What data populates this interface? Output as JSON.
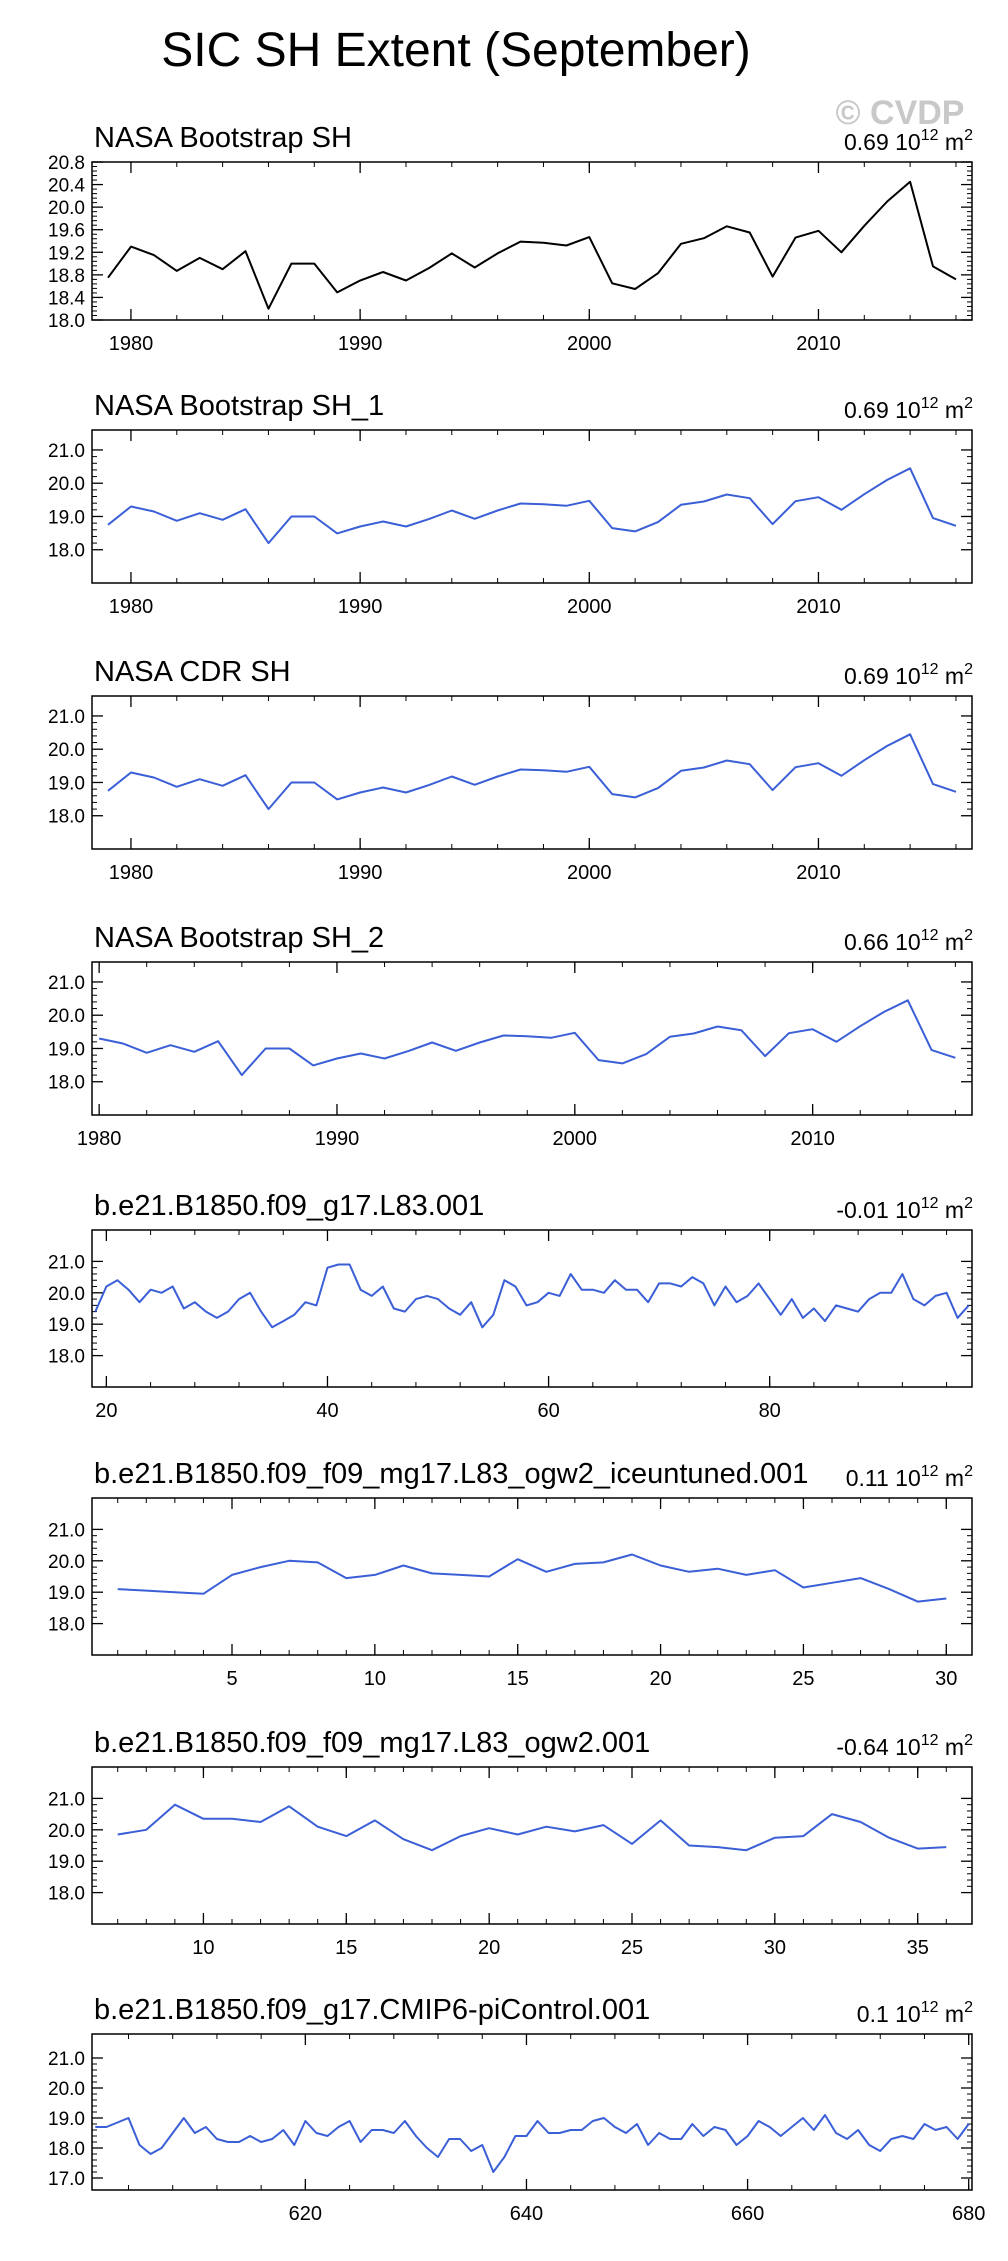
{
  "page": {
    "title": "SIC SH Extent (September)",
    "watermark": "© CVDP"
  },
  "colors": {
    "black": "#000000",
    "blue": "#3b5fd6",
    "watermark": "#c8c8c8"
  },
  "chart_data": [
    {
      "type": "line",
      "title": "NASA Bootstrap SH",
      "trend": "0.69",
      "trend_unit": "10",
      "trend_exp": "12",
      "trend_suffix": " m",
      "trend_sup2": "2",
      "color": "black",
      "xlim": [
        1978.3,
        2016.7
      ],
      "ylim": [
        18.0,
        20.8
      ],
      "xticks": [
        1980,
        1990,
        2000,
        2010
      ],
      "yticks": [
        18.0,
        18.4,
        18.8,
        19.2,
        19.6,
        20.0,
        20.4,
        20.8
      ],
      "x": [
        1979,
        1980,
        1981,
        1982,
        1983,
        1984,
        1985,
        1986,
        1987,
        1988,
        1989,
        1990,
        1991,
        1992,
        1993,
        1994,
        1995,
        1996,
        1997,
        1998,
        1999,
        2000,
        2001,
        2002,
        2003,
        2004,
        2005,
        2006,
        2007,
        2008,
        2009,
        2010,
        2011,
        2012,
        2013,
        2014,
        2015,
        2016
      ],
      "values": [
        18.75,
        19.3,
        19.15,
        18.87,
        19.1,
        18.9,
        19.22,
        18.2,
        19.0,
        19.0,
        18.49,
        18.7,
        18.85,
        18.7,
        18.92,
        19.18,
        18.93,
        19.18,
        19.39,
        19.37,
        19.32,
        19.47,
        18.65,
        18.55,
        18.83,
        19.35,
        19.45,
        19.66,
        19.55,
        18.77,
        19.46,
        19.58,
        19.2,
        19.67,
        20.1,
        20.45,
        18.95,
        18.72
      ]
    },
    {
      "type": "line",
      "title": "NASA Bootstrap SH_1",
      "trend": "0.69",
      "trend_unit": "10",
      "trend_exp": "12",
      "trend_suffix": " m",
      "trend_sup2": "2",
      "color": "blue",
      "xlim": [
        1978.3,
        2016.7
      ],
      "ylim": [
        17.0,
        21.6
      ],
      "xticks": [
        1980,
        1990,
        2000,
        2010
      ],
      "yticks": [
        18.0,
        19.0,
        20.0,
        21.0
      ],
      "x": [
        1979,
        1980,
        1981,
        1982,
        1983,
        1984,
        1985,
        1986,
        1987,
        1988,
        1989,
        1990,
        1991,
        1992,
        1993,
        1994,
        1995,
        1996,
        1997,
        1998,
        1999,
        2000,
        2001,
        2002,
        2003,
        2004,
        2005,
        2006,
        2007,
        2008,
        2009,
        2010,
        2011,
        2012,
        2013,
        2014,
        2015,
        2016
      ],
      "values": [
        18.75,
        19.3,
        19.15,
        18.87,
        19.1,
        18.9,
        19.22,
        18.2,
        19.0,
        19.0,
        18.49,
        18.7,
        18.85,
        18.7,
        18.92,
        19.18,
        18.93,
        19.18,
        19.39,
        19.37,
        19.32,
        19.47,
        18.65,
        18.55,
        18.83,
        19.35,
        19.45,
        19.66,
        19.55,
        18.77,
        19.46,
        19.58,
        19.2,
        19.67,
        20.1,
        20.45,
        18.95,
        18.72
      ]
    },
    {
      "type": "line",
      "title": "NASA CDR SH",
      "trend": "0.69",
      "trend_unit": "10",
      "trend_exp": "12",
      "trend_suffix": " m",
      "trend_sup2": "2",
      "color": "blue",
      "xlim": [
        1978.3,
        2016.7
      ],
      "ylim": [
        17.0,
        21.6
      ],
      "xticks": [
        1980,
        1990,
        2000,
        2010
      ],
      "yticks": [
        18.0,
        19.0,
        20.0,
        21.0
      ],
      "x": [
        1979,
        1980,
        1981,
        1982,
        1983,
        1984,
        1985,
        1986,
        1987,
        1988,
        1989,
        1990,
        1991,
        1992,
        1993,
        1994,
        1995,
        1996,
        1997,
        1998,
        1999,
        2000,
        2001,
        2002,
        2003,
        2004,
        2005,
        2006,
        2007,
        2008,
        2009,
        2010,
        2011,
        2012,
        2013,
        2014,
        2015,
        2016
      ],
      "values": [
        18.75,
        19.3,
        19.15,
        18.87,
        19.1,
        18.9,
        19.22,
        18.2,
        19.0,
        19.0,
        18.49,
        18.7,
        18.85,
        18.7,
        18.92,
        19.18,
        18.93,
        19.18,
        19.39,
        19.37,
        19.32,
        19.47,
        18.65,
        18.55,
        18.83,
        19.35,
        19.45,
        19.66,
        19.55,
        18.77,
        19.46,
        19.58,
        19.2,
        19.67,
        20.1,
        20.45,
        18.95,
        18.72
      ]
    },
    {
      "type": "line",
      "title": "NASA Bootstrap SH_2",
      "trend": "0.66",
      "trend_unit": "10",
      "trend_exp": "12",
      "trend_suffix": " m",
      "trend_sup2": "2",
      "color": "blue",
      "xlim": [
        1979.7,
        2016.7
      ],
      "ylim": [
        17.0,
        21.6
      ],
      "xticks": [
        1980,
        1990,
        2000,
        2010
      ],
      "yticks": [
        18.0,
        19.0,
        20.0,
        21.0
      ],
      "x": [
        1980,
        1981,
        1982,
        1983,
        1984,
        1985,
        1986,
        1987,
        1988,
        1989,
        1990,
        1991,
        1992,
        1993,
        1994,
        1995,
        1996,
        1997,
        1998,
        1999,
        2000,
        2001,
        2002,
        2003,
        2004,
        2005,
        2006,
        2007,
        2008,
        2009,
        2010,
        2011,
        2012,
        2013,
        2014,
        2015,
        2016
      ],
      "values": [
        19.3,
        19.15,
        18.87,
        19.1,
        18.9,
        19.22,
        18.2,
        19.0,
        19.0,
        18.49,
        18.7,
        18.85,
        18.7,
        18.92,
        19.18,
        18.93,
        19.18,
        19.39,
        19.37,
        19.32,
        19.47,
        18.65,
        18.55,
        18.83,
        19.35,
        19.45,
        19.66,
        19.55,
        18.77,
        19.46,
        19.58,
        19.2,
        19.67,
        20.1,
        20.45,
        18.95,
        18.72
      ]
    },
    {
      "type": "line",
      "title": "b.e21.B1850.f09_g17.L83.001",
      "trend": "-0.01",
      "trend_unit": "10",
      "trend_exp": "12",
      "trend_suffix": " m",
      "trend_sup2": "2",
      "color": "blue",
      "xlim": [
        18.7,
        98.3
      ],
      "ylim": [
        17.0,
        22.0
      ],
      "xticks": [
        20,
        40,
        60,
        80
      ],
      "yticks": [
        18.0,
        19.0,
        20.0,
        21.0
      ],
      "x": [
        19,
        20,
        21,
        22,
        23,
        24,
        25,
        26,
        27,
        28,
        29,
        30,
        31,
        32,
        33,
        34,
        35,
        36,
        37,
        38,
        39,
        40,
        41,
        42,
        43,
        44,
        45,
        46,
        47,
        48,
        49,
        50,
        51,
        52,
        53,
        54,
        55,
        56,
        57,
        58,
        59,
        60,
        61,
        62,
        63,
        64,
        65,
        66,
        67,
        68,
        69,
        70,
        71,
        72,
        73,
        74,
        75,
        76,
        77,
        78,
        79,
        80,
        81,
        82,
        83,
        84,
        85,
        86,
        87,
        88,
        89,
        90,
        91,
        92,
        93,
        94,
        95,
        96,
        97,
        98
      ],
      "values": [
        19.4,
        20.2,
        20.4,
        20.1,
        19.7,
        20.1,
        20.0,
        20.2,
        19.5,
        19.7,
        19.4,
        19.2,
        19.4,
        19.8,
        20.0,
        19.4,
        18.9,
        19.1,
        19.3,
        19.7,
        19.6,
        20.8,
        20.9,
        20.9,
        20.1,
        19.9,
        20.2,
        19.5,
        19.4,
        19.8,
        19.9,
        19.8,
        19.5,
        19.3,
        19.7,
        18.9,
        19.3,
        20.4,
        20.2,
        19.6,
        19.7,
        20.0,
        19.9,
        20.6,
        20.1,
        20.1,
        20.0,
        20.4,
        20.1,
        20.1,
        19.7,
        20.3,
        20.3,
        20.2,
        20.5,
        20.3,
        19.6,
        20.2,
        19.7,
        19.9,
        20.3,
        19.8,
        19.3,
        19.8,
        19.2,
        19.5,
        19.1,
        19.6,
        19.5,
        19.4,
        19.8,
        20.0,
        20.0,
        20.6,
        19.8,
        19.6,
        19.9,
        20.0,
        19.2,
        19.6
      ]
    },
    {
      "type": "line",
      "title": "b.e21.B1850.f09_f09_mg17.L83_ogw2_iceuntuned.001",
      "trend": "0.11",
      "trend_unit": "10",
      "trend_exp": "12",
      "trend_suffix": " m",
      "trend_sup2": "2",
      "color": "blue",
      "xlim": [
        0.1,
        30.9
      ],
      "ylim": [
        17.0,
        22.0
      ],
      "xticks": [
        5,
        10,
        15,
        20,
        25,
        30
      ],
      "yticks": [
        18.0,
        19.0,
        20.0,
        21.0
      ],
      "x": [
        1,
        2,
        3,
        4,
        5,
        6,
        7,
        8,
        9,
        10,
        11,
        12,
        13,
        14,
        15,
        16,
        17,
        18,
        19,
        20,
        21,
        22,
        23,
        24,
        25,
        26,
        27,
        28,
        29,
        30
      ],
      "values": [
        19.1,
        19.05,
        19.0,
        18.95,
        19.55,
        19.8,
        20.0,
        19.95,
        19.45,
        19.55,
        19.85,
        19.6,
        19.55,
        19.5,
        20.05,
        19.65,
        19.9,
        19.95,
        20.2,
        19.85,
        19.65,
        19.75,
        19.55,
        19.7,
        19.15,
        19.3,
        19.45,
        19.1,
        18.7,
        18.8
      ]
    },
    {
      "type": "line",
      "title": "b.e21.B1850.f09_f09_mg17.L83_ogw2.001",
      "trend": "-0.64",
      "trend_unit": "10",
      "trend_exp": "12",
      "trend_suffix": " m",
      "trend_sup2": "2",
      "color": "blue",
      "xlim": [
        6.1,
        36.9
      ],
      "ylim": [
        17.0,
        22.0
      ],
      "xticks": [
        10,
        15,
        20,
        25,
        30,
        35
      ],
      "yticks": [
        18.0,
        19.0,
        20.0,
        21.0
      ],
      "x": [
        7,
        8,
        9,
        10,
        11,
        12,
        13,
        14,
        15,
        16,
        17,
        18,
        19,
        20,
        21,
        22,
        23,
        24,
        25,
        26,
        27,
        28,
        29,
        30,
        31,
        32,
        33,
        34,
        35,
        36
      ],
      "values": [
        19.85,
        20.0,
        20.8,
        20.35,
        20.35,
        20.25,
        20.75,
        20.1,
        19.8,
        20.3,
        19.7,
        19.35,
        19.8,
        20.05,
        19.85,
        20.1,
        19.95,
        20.15,
        19.55,
        20.3,
        19.5,
        19.45,
        19.35,
        19.75,
        19.8,
        20.5,
        20.25,
        19.75,
        19.4,
        19.45
      ]
    },
    {
      "type": "line",
      "title": "b.e21.B1850.f09_g17.CMIP6-piControl.001",
      "trend": "0.1",
      "trend_unit": "10",
      "trend_exp": "12",
      "trend_suffix": " m",
      "trend_sup2": "2",
      "color": "blue",
      "xlim": [
        600.7,
        680.3
      ],
      "ylim": [
        16.6,
        21.8
      ],
      "xticks": [
        620,
        640,
        660,
        680
      ],
      "yticks": [
        17.0,
        18.0,
        19.0,
        20.0,
        21.0
      ],
      "x": [
        601,
        602,
        603,
        604,
        605,
        606,
        607,
        608,
        609,
        610,
        611,
        612,
        613,
        614,
        615,
        616,
        617,
        618,
        619,
        620,
        621,
        622,
        623,
        624,
        625,
        626,
        627,
        628,
        629,
        630,
        631,
        632,
        633,
        634,
        635,
        636,
        637,
        638,
        639,
        640,
        641,
        642,
        643,
        644,
        645,
        646,
        647,
        648,
        649,
        650,
        651,
        652,
        653,
        654,
        655,
        656,
        657,
        658,
        659,
        660,
        661,
        662,
        663,
        664,
        665,
        666,
        667,
        668,
        669,
        670,
        671,
        672,
        673,
        674,
        675,
        676,
        677,
        678,
        679,
        680
      ],
      "values": [
        18.7,
        18.7,
        18.85,
        19.0,
        18.1,
        17.8,
        18.0,
        18.5,
        19.0,
        18.5,
        18.7,
        18.3,
        18.2,
        18.2,
        18.4,
        18.2,
        18.3,
        18.6,
        18.1,
        18.9,
        18.5,
        18.4,
        18.7,
        18.9,
        18.2,
        18.6,
        18.6,
        18.5,
        18.9,
        18.4,
        18.0,
        17.7,
        18.3,
        18.3,
        17.9,
        18.1,
        17.2,
        17.7,
        18.4,
        18.4,
        18.9,
        18.5,
        18.5,
        18.6,
        18.6,
        18.9,
        19.0,
        18.7,
        18.5,
        18.8,
        18.1,
        18.5,
        18.3,
        18.3,
        18.8,
        18.4,
        18.7,
        18.6,
        18.1,
        18.4,
        18.9,
        18.7,
        18.4,
        18.7,
        19.0,
        18.6,
        19.1,
        18.5,
        18.3,
        18.6,
        18.1,
        17.9,
        18.3,
        18.4,
        18.3,
        18.8,
        18.6,
        18.7,
        18.3,
        18.8
      ]
    }
  ]
}
